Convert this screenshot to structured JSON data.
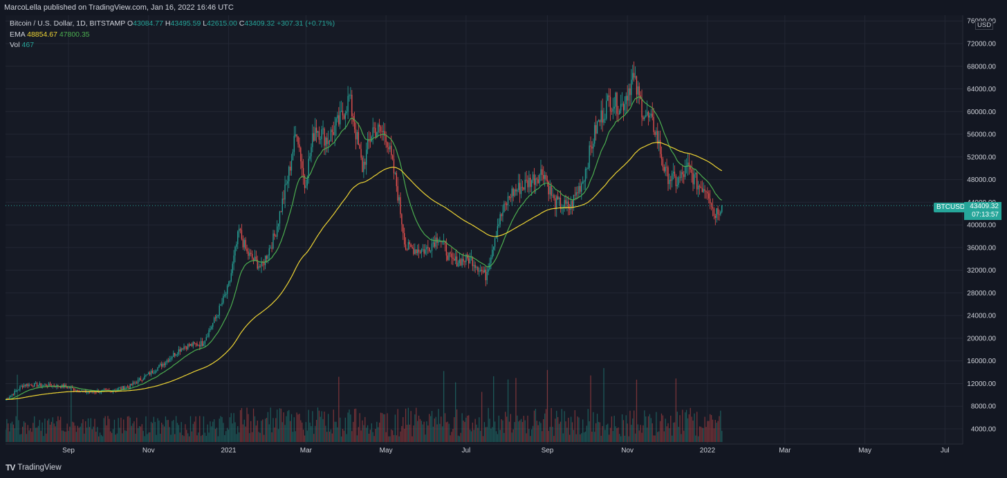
{
  "publish_line": "MarcoLella published on TradingView.com, Jan 16, 2022 16:46 UTC",
  "legend": {
    "title": "Bitcoin / U.S. Dollar, 1D, BITSTAMP",
    "o_label": "O",
    "o_value": "43084.77",
    "h_label": "H",
    "h_value": "43495.59",
    "l_label": "L",
    "l_value": "42615.00",
    "c_label": "C",
    "c_value": "43409.32",
    "change": "+307.31 (+0.71%)",
    "ema_label": "EMA",
    "ema_fast": "48854.67",
    "ema_slow": "47800.35",
    "vol_label": "Vol",
    "vol_value": "467"
  },
  "price_tag": {
    "ticker": "BTCUSD",
    "price": "43409.32",
    "countdown": "07:13:57"
  },
  "axis_unit": "USD",
  "brand": "TradingView",
  "colors": {
    "up": "#26a69a",
    "down": "#ef5350",
    "ema_fast": "#4caf50",
    "ema_slow": "#f0d634",
    "grid": "#232734",
    "axis_text": "#d1d4dc"
  },
  "chart_data": {
    "type": "candlestick",
    "title": "Bitcoin / U.S. Dollar, 1D, BITSTAMP",
    "xlabel": "",
    "ylabel": "USD",
    "ylim": [
      3000,
      76000
    ],
    "xlim_months": [
      "2020-07-15",
      "2022-08-20"
    ],
    "y_ticks": [
      4000,
      8000,
      12000,
      16000,
      20000,
      24000,
      28000,
      32000,
      36000,
      40000,
      44000,
      48000,
      52000,
      56000,
      60000,
      64000,
      68000,
      72000,
      76000
    ],
    "y_tick_labels": [
      "4000.00",
      "8000.00",
      "12000.00",
      "16000.00",
      "20000.00",
      "24000.00",
      "28000.00",
      "32000.00",
      "36000.00",
      "40000.00",
      "44000.00",
      "48000.00",
      "52000.00",
      "56000.00",
      "60000.00",
      "64000.00",
      "68000.00",
      "72000.00",
      "76000.00"
    ],
    "x_ticks": [
      {
        "label": "Sep",
        "day": 48
      },
      {
        "label": "Nov",
        "day": 109
      },
      {
        "label": "2021",
        "day": 170
      },
      {
        "label": "Mar",
        "day": 229
      },
      {
        "label": "May",
        "day": 290
      },
      {
        "label": "Jul",
        "day": 351
      },
      {
        "label": "Sep",
        "day": 413
      },
      {
        "label": "Nov",
        "day": 474
      },
      {
        "label": "2022",
        "day": 535
      },
      {
        "label": "Mar",
        "day": 594
      },
      {
        "label": "May",
        "day": 655
      },
      {
        "label": "Jul",
        "day": 716
      }
    ],
    "last_price": 43409.32,
    "price_anchors": [
      {
        "day": 0,
        "p": 9200
      },
      {
        "day": 14,
        "p": 11800
      },
      {
        "day": 30,
        "p": 11700
      },
      {
        "day": 45,
        "p": 11500
      },
      {
        "day": 60,
        "p": 10500
      },
      {
        "day": 80,
        "p": 10700
      },
      {
        "day": 95,
        "p": 11600
      },
      {
        "day": 110,
        "p": 13800
      },
      {
        "day": 120,
        "p": 15500
      },
      {
        "day": 135,
        "p": 18500
      },
      {
        "day": 150,
        "p": 19100
      },
      {
        "day": 160,
        "p": 23500
      },
      {
        "day": 170,
        "p": 29000
      },
      {
        "day": 178,
        "p": 39000
      },
      {
        "day": 184,
        "p": 35000
      },
      {
        "day": 195,
        "p": 32500
      },
      {
        "day": 205,
        "p": 38000
      },
      {
        "day": 215,
        "p": 48000
      },
      {
        "day": 222,
        "p": 57000
      },
      {
        "day": 228,
        "p": 47000
      },
      {
        "day": 236,
        "p": 57500
      },
      {
        "day": 245,
        "p": 55000
      },
      {
        "day": 255,
        "p": 58500
      },
      {
        "day": 262,
        "p": 62500
      },
      {
        "day": 272,
        "p": 50000
      },
      {
        "day": 280,
        "p": 57000
      },
      {
        "day": 290,
        "p": 56000
      },
      {
        "day": 298,
        "p": 47000
      },
      {
        "day": 305,
        "p": 36000
      },
      {
        "day": 320,
        "p": 35500
      },
      {
        "day": 330,
        "p": 38000
      },
      {
        "day": 340,
        "p": 33500
      },
      {
        "day": 355,
        "p": 34000
      },
      {
        "day": 366,
        "p": 31000
      },
      {
        "day": 375,
        "p": 40000
      },
      {
        "day": 385,
        "p": 45500
      },
      {
        "day": 395,
        "p": 47000
      },
      {
        "day": 410,
        "p": 49500
      },
      {
        "day": 418,
        "p": 44000
      },
      {
        "day": 430,
        "p": 43000
      },
      {
        "day": 440,
        "p": 48000
      },
      {
        "day": 450,
        "p": 57000
      },
      {
        "day": 460,
        "p": 62000
      },
      {
        "day": 470,
        "p": 61000
      },
      {
        "day": 478,
        "p": 66000
      },
      {
        "day": 486,
        "p": 60000
      },
      {
        "day": 495,
        "p": 57000
      },
      {
        "day": 503,
        "p": 49000
      },
      {
        "day": 512,
        "p": 47500
      },
      {
        "day": 520,
        "p": 50000
      },
      {
        "day": 528,
        "p": 47000
      },
      {
        "day": 535,
        "p": 46500
      },
      {
        "day": 540,
        "p": 42000
      },
      {
        "day": 546,
        "p": 43409
      }
    ],
    "indicators": [
      {
        "name": "EMA (fast)",
        "last_value": 48854.67
      },
      {
        "name": "EMA (slow)",
        "last_value": 47800.35
      },
      {
        "name": "Vol",
        "last_value": 467
      }
    ]
  }
}
